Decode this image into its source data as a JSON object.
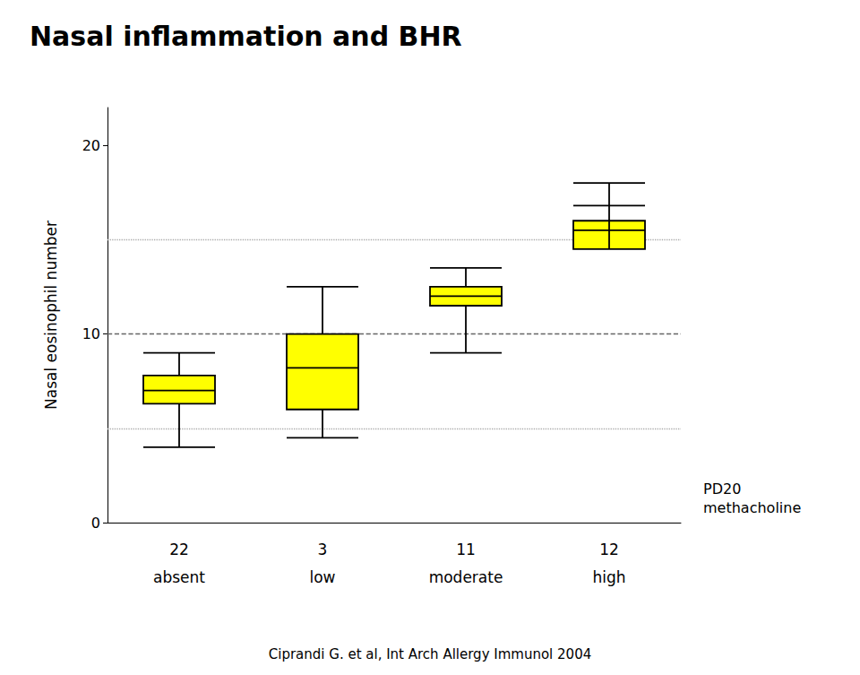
{
  "chart_data": {
    "type": "boxplot",
    "title": "Nasal inflammation and BHR",
    "y_label": "Nasal eosinophil number",
    "categories": [
      "absent",
      "low",
      "moderate",
      "high"
    ],
    "n_labels": [
      "22",
      "3",
      "11",
      "12"
    ],
    "box_stats": [
      {
        "whislo": 4.0,
        "q1": 6.3,
        "med": 7.0,
        "q3": 7.8,
        "whishi": 9.0
      },
      {
        "whislo": 4.5,
        "q1": 6.0,
        "med": 8.2,
        "q3": 10.0,
        "whishi": 12.5
      },
      {
        "whislo": 9.0,
        "q1": 11.5,
        "med": 12.0,
        "q3": 12.5,
        "whishi": 13.5
      },
      {
        "whislo": 16.8,
        "q1": 14.5,
        "med": 15.5,
        "q3": 16.0,
        "whishi": 18.0
      }
    ],
    "color": "#ffff00",
    "reference_lines": [
      {
        "y": 5.0,
        "line_style": "dotted",
        "color": "#aaaaaa"
      },
      {
        "y": 10.0,
        "line_style": "dashed",
        "color": "#666666"
      },
      {
        "y": 15.0,
        "line_style": "dotted",
        "color": "#aaaaaa"
      }
    ],
    "ylim": [
      0,
      22
    ],
    "yticks": [
      0,
      10,
      20
    ],
    "grid": false,
    "annotation": "PD20\nmethacholine",
    "footnote": "Ciprandi G. et al, Int Arch Allergy Immunol 2004"
  }
}
